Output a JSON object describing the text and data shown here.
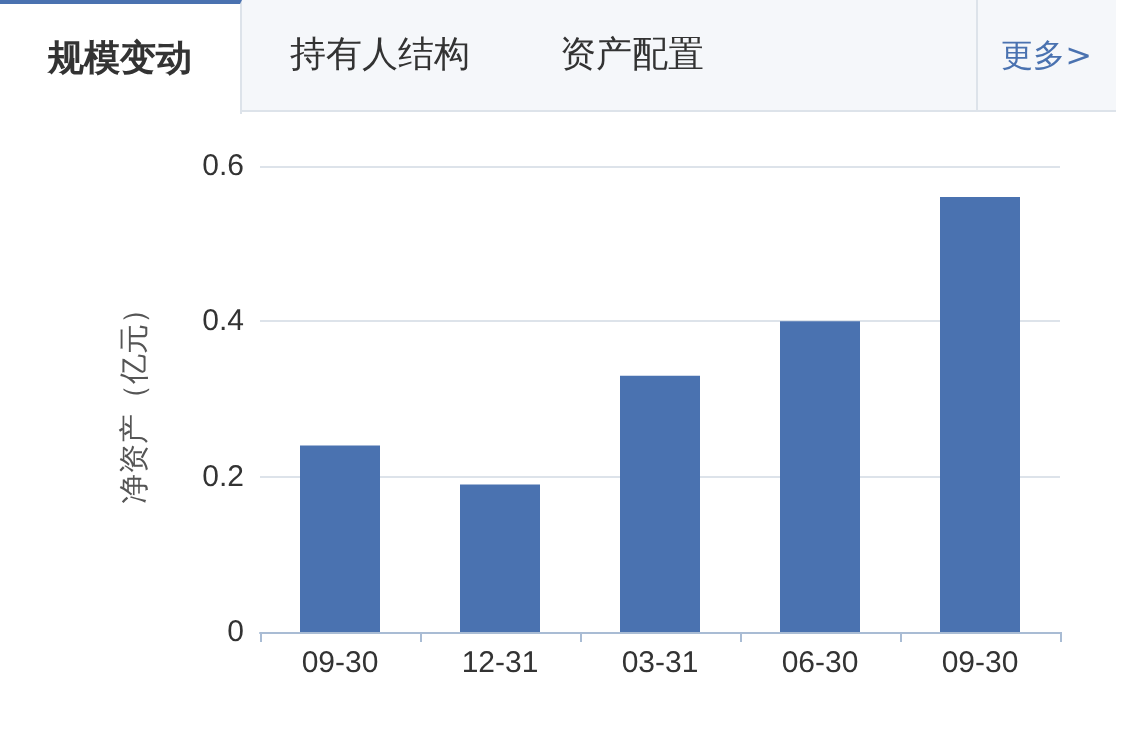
{
  "chart_data": {
    "type": "bar",
    "ylabel": "净资产（亿元）",
    "categories": [
      "09-30",
      "12-31",
      "03-31",
      "06-30",
      "09-30"
    ],
    "values": [
      0.24,
      0.19,
      0.33,
      0.4,
      0.56
    ],
    "color": "#4a72b0",
    "ylim": [
      0,
      0.6
    ],
    "yticks": [
      0,
      0.2,
      0.4,
      0.6
    ],
    "grid": "y",
    "annotations": [
      "规模变动",
      "持有人结构",
      "资产配置",
      "更多>"
    ]
  }
}
